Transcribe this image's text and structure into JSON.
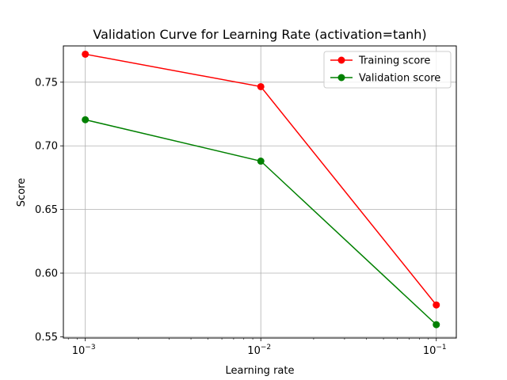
{
  "chart_data": {
    "type": "line",
    "title": "Validation Curve for Learning Rate (activation=tanh)",
    "xlabel": "Learning rate",
    "ylabel": "Score",
    "x_scale": "log",
    "x": [
      0.001,
      0.01,
      0.1
    ],
    "xlim": [
      0.00075,
      0.13
    ],
    "ylim": [
      0.549,
      0.7785
    ],
    "x_ticks": [
      {
        "value": 0.001,
        "base": "10",
        "exp": "−3"
      },
      {
        "value": 0.01,
        "base": "10",
        "exp": "−2"
      },
      {
        "value": 0.1,
        "base": "10",
        "exp": "−1"
      }
    ],
    "y_ticks": [
      {
        "value": 0.55,
        "label": "0.55"
      },
      {
        "value": 0.6,
        "label": "0.60"
      },
      {
        "value": 0.65,
        "label": "0.65"
      },
      {
        "value": 0.7,
        "label": "0.70"
      },
      {
        "value": 0.75,
        "label": "0.75"
      }
    ],
    "grid": true,
    "legend_position": "top-right",
    "series": [
      {
        "name": "Training score",
        "color": "#ff0000",
        "marker": "circle",
        "values": [
          0.772,
          0.7465,
          0.575
        ]
      },
      {
        "name": "Validation score",
        "color": "#008000",
        "marker": "circle",
        "values": [
          0.7205,
          0.688,
          0.5595
        ]
      }
    ]
  }
}
